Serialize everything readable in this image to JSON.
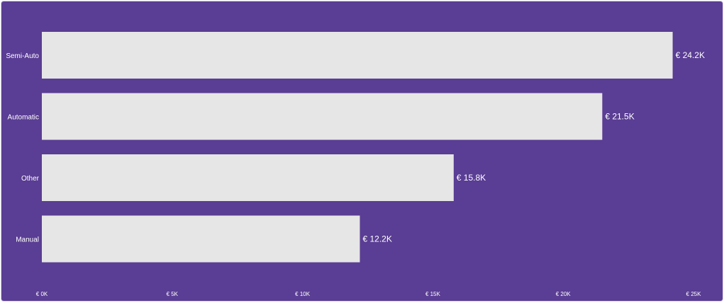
{
  "chart_data": {
    "type": "bar",
    "orientation": "horizontal",
    "categories": [
      "Semi-Auto",
      "Automatic",
      "Other",
      "Manual"
    ],
    "values": [
      24200,
      21500,
      15800,
      12200
    ],
    "data_labels": [
      "€ 24.2K",
      "€ 21.5K",
      "€ 15.8K",
      "€ 12.2K"
    ],
    "x_ticks": [
      {
        "value": 0,
        "label": "€ 0K"
      },
      {
        "value": 5000,
        "label": "€ 5K"
      },
      {
        "value": 10000,
        "label": "€ 10K"
      },
      {
        "value": 15000,
        "label": "€ 15K"
      },
      {
        "value": 20000,
        "label": "€ 20K"
      },
      {
        "value": 25000,
        "label": "€ 25K"
      }
    ],
    "xlim": [
      0,
      25000
    ],
    "title": "",
    "xlabel": "",
    "ylabel": "",
    "grid": false,
    "legend": "none",
    "colors": {
      "background": "#5a3d94",
      "bar": "#e6e6e6",
      "text": "#ffffff"
    }
  }
}
